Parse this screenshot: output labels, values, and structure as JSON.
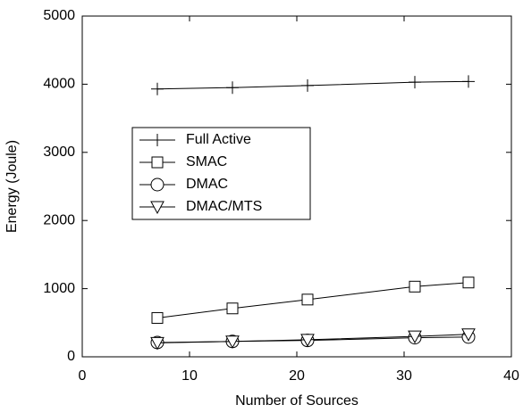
{
  "chart_data": {
    "type": "line",
    "xlabel": "Number of Sources",
    "ylabel": "Energy (Joule)",
    "x": [
      7,
      14,
      21,
      31,
      36
    ],
    "series": [
      {
        "name": "Full Active",
        "color": "#000000",
        "marker": "plus",
        "values": [
          3930,
          3950,
          3980,
          4030,
          4040
        ]
      },
      {
        "name": "SMAC",
        "color": "#000000",
        "marker": "square",
        "values": [
          570,
          710,
          840,
          1030,
          1090
        ]
      },
      {
        "name": "DMAC",
        "color": "#000000",
        "marker": "circle",
        "values": [
          210,
          225,
          240,
          280,
          290
        ]
      },
      {
        "name": "DMAC/MTS",
        "color": "#000000",
        "marker": "triangle-down",
        "values": [
          205,
          225,
          250,
          300,
          330
        ]
      }
    ],
    "xlim": [
      0,
      40
    ],
    "xticks": [
      0,
      10,
      20,
      30,
      40
    ],
    "ylim": [
      0,
      5000
    ],
    "yticks": [
      0,
      1000,
      2000,
      3000,
      4000,
      5000
    ],
    "grid": false,
    "legend": "center-left"
  }
}
